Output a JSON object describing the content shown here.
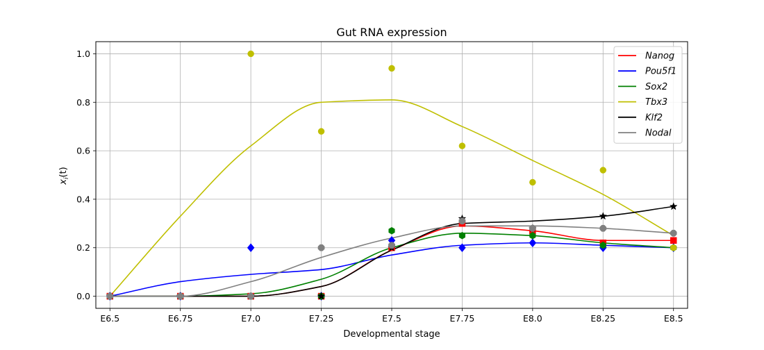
{
  "chart_data": {
    "type": "line",
    "title": "Gut RNA expression",
    "xlabel": "Developmental stage",
    "ylabel": "x_i(t)",
    "ylabel_main": "x",
    "ylabel_sub": "i",
    "ylabel_tail": "(t)",
    "categories": [
      "E6.5",
      "E6.75",
      "E7.0",
      "E7.25",
      "E7.5",
      "E7.75",
      "E8.0",
      "E8.25",
      "E8.5"
    ],
    "x_values": [
      6.5,
      6.75,
      7.0,
      7.25,
      7.5,
      7.75,
      8.0,
      8.25,
      8.5
    ],
    "xlim": [
      6.45,
      8.55
    ],
    "ylim": [
      -0.05,
      1.05
    ],
    "yticks": [
      0.0,
      0.2,
      0.4,
      0.6,
      0.8,
      1.0
    ],
    "ytick_labels": [
      "0.0",
      "0.2",
      "0.4",
      "0.6",
      "0.8",
      "1.0"
    ],
    "grid": true,
    "legend_position": "top-right",
    "series": [
      {
        "name": "Nanog",
        "color": "#ff0000",
        "marker": "square",
        "points": [
          0.0,
          0.0,
          0.0,
          0.0,
          0.2,
          0.3,
          0.27,
          0.22,
          0.23
        ],
        "curve": [
          0.0,
          0.0,
          0.0,
          0.04,
          0.19,
          0.29,
          0.27,
          0.23,
          0.23
        ]
      },
      {
        "name": "Pou5f1",
        "color": "#0000ff",
        "marker": "diamond",
        "points": [
          0.0,
          0.0,
          0.2,
          0.0,
          0.23,
          0.2,
          0.22,
          0.2,
          0.2
        ],
        "curve": [
          0.0,
          0.06,
          0.09,
          0.11,
          0.17,
          0.21,
          0.22,
          0.21,
          0.2
        ]
      },
      {
        "name": "Sox2",
        "color": "#008000",
        "marker": "hexagon",
        "points": [
          0.0,
          0.0,
          0.0,
          0.0,
          0.27,
          0.25,
          0.25,
          0.21,
          0.2
        ],
        "curve": [
          0.0,
          0.0,
          0.01,
          0.07,
          0.2,
          0.26,
          0.25,
          0.22,
          0.2
        ]
      },
      {
        "name": "Tbx3",
        "color": "#bfbf00",
        "marker": "circle",
        "points": [
          0.0,
          0.0,
          1.0,
          0.68,
          0.94,
          0.62,
          0.47,
          0.52,
          0.2
        ],
        "curve": [
          0.0,
          0.33,
          0.62,
          0.8,
          0.81,
          0.7,
          0.56,
          0.42,
          0.25
        ]
      },
      {
        "name": "Klf2",
        "color": "#000000",
        "marker": "star",
        "points": [
          0.0,
          0.0,
          0.0,
          0.0,
          0.2,
          0.32,
          0.28,
          0.33,
          0.37
        ],
        "curve": [
          0.0,
          0.0,
          0.0,
          0.04,
          0.19,
          0.3,
          0.31,
          0.33,
          0.37
        ]
      },
      {
        "name": "Nodal",
        "color": "#808080",
        "marker": "octagon",
        "points": [
          0.0,
          0.0,
          0.0,
          0.2,
          0.21,
          0.31,
          0.28,
          0.28,
          0.26
        ],
        "curve": [
          0.0,
          0.0,
          0.06,
          0.16,
          0.24,
          0.29,
          0.29,
          0.28,
          0.26
        ]
      }
    ]
  }
}
